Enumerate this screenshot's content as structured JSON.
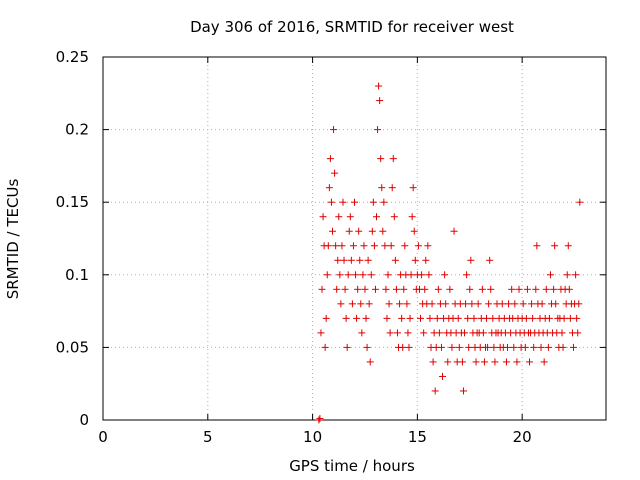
{
  "chart_data": {
    "type": "scatter",
    "title": "Day 306 of 2016, SRMTID for receiver west",
    "xlabel": "GPS time / hours",
    "ylabel": "SRMTID / TECUs",
    "xlim": [
      0,
      24
    ],
    "ylim": [
      0,
      0.25
    ],
    "xticks": [
      0,
      5,
      10,
      15,
      20
    ],
    "xtick_labels": [
      "0",
      "5",
      "10",
      "15",
      "20"
    ],
    "yticks": [
      0,
      0.05,
      0.1,
      0.15,
      0.2,
      0.25
    ],
    "ytick_labels": [
      "0",
      "0.05",
      "0.1",
      "0.15",
      "0.2",
      "0.25"
    ],
    "grid": true,
    "marker": "plus",
    "color": "#e00000",
    "series": [
      {
        "name": "SRMTID",
        "points": [
          [
            10.3,
            0.0
          ],
          [
            10.35,
            0.001
          ],
          [
            10.4,
            0.06
          ],
          [
            10.45,
            0.09
          ],
          [
            10.5,
            0.14
          ],
          [
            10.55,
            0.12
          ],
          [
            10.6,
            0.05
          ],
          [
            10.65,
            0.07
          ],
          [
            10.7,
            0.1
          ],
          [
            10.75,
            0.12
          ],
          [
            10.8,
            0.16
          ],
          [
            10.85,
            0.18
          ],
          [
            10.9,
            0.15
          ],
          [
            10.95,
            0.13
          ],
          [
            11.0,
            0.2
          ],
          [
            11.05,
            0.17
          ],
          [
            11.1,
            0.12
          ],
          [
            11.15,
            0.09
          ],
          [
            11.2,
            0.11
          ],
          [
            11.25,
            0.14
          ],
          [
            11.3,
            0.1
          ],
          [
            11.35,
            0.08
          ],
          [
            11.4,
            0.12
          ],
          [
            11.45,
            0.15
          ],
          [
            11.5,
            0.11
          ],
          [
            11.55,
            0.09
          ],
          [
            11.6,
            0.07
          ],
          [
            11.65,
            0.05
          ],
          [
            11.7,
            0.1
          ],
          [
            11.75,
            0.13
          ],
          [
            11.8,
            0.14
          ],
          [
            11.85,
            0.11
          ],
          [
            11.9,
            0.08
          ],
          [
            11.95,
            0.12
          ],
          [
            12.0,
            0.15
          ],
          [
            12.05,
            0.1
          ],
          [
            12.1,
            0.07
          ],
          [
            12.15,
            0.09
          ],
          [
            12.2,
            0.13
          ],
          [
            12.25,
            0.11
          ],
          [
            12.3,
            0.08
          ],
          [
            12.35,
            0.06
          ],
          [
            12.4,
            0.1
          ],
          [
            12.45,
            0.12
          ],
          [
            12.5,
            0.09
          ],
          [
            12.55,
            0.07
          ],
          [
            12.6,
            0.05
          ],
          [
            12.65,
            0.11
          ],
          [
            12.7,
            0.08
          ],
          [
            12.75,
            0.04
          ],
          [
            12.8,
            0.1
          ],
          [
            12.85,
            0.13
          ],
          [
            12.9,
            0.15
          ],
          [
            12.95,
            0.12
          ],
          [
            13.0,
            0.09
          ],
          [
            13.05,
            0.14
          ],
          [
            13.1,
            0.2
          ],
          [
            13.15,
            0.23
          ],
          [
            13.2,
            0.22
          ],
          [
            13.25,
            0.18
          ],
          [
            13.3,
            0.16
          ],
          [
            13.35,
            0.13
          ],
          [
            13.4,
            0.15
          ],
          [
            13.45,
            0.12
          ],
          [
            13.5,
            0.09
          ],
          [
            13.55,
            0.07
          ],
          [
            13.6,
            0.1
          ],
          [
            13.65,
            0.08
          ],
          [
            13.7,
            0.06
          ],
          [
            13.75,
            0.12
          ],
          [
            13.8,
            0.16
          ],
          [
            13.85,
            0.18
          ],
          [
            13.9,
            0.14
          ],
          [
            13.95,
            0.11
          ],
          [
            14.0,
            0.09
          ],
          [
            14.05,
            0.06
          ],
          [
            14.1,
            0.05
          ],
          [
            14.15,
            0.08
          ],
          [
            14.2,
            0.1
          ],
          [
            14.25,
            0.07
          ],
          [
            14.3,
            0.05
          ],
          [
            14.35,
            0.09
          ],
          [
            14.4,
            0.12
          ],
          [
            14.45,
            0.1
          ],
          [
            14.5,
            0.08
          ],
          [
            14.55,
            0.06
          ],
          [
            14.6,
            0.05
          ],
          [
            14.65,
            0.07
          ],
          [
            14.7,
            0.1
          ],
          [
            14.75,
            0.14
          ],
          [
            14.8,
            0.16
          ],
          [
            14.85,
            0.13
          ],
          [
            14.9,
            0.11
          ],
          [
            14.95,
            0.09
          ],
          [
            15.0,
            0.1
          ],
          [
            15.05,
            0.12
          ],
          [
            15.1,
            0.09
          ],
          [
            15.15,
            0.07
          ],
          [
            15.2,
            0.1
          ],
          [
            15.25,
            0.08
          ],
          [
            15.3,
            0.06
          ],
          [
            15.35,
            0.09
          ],
          [
            15.4,
            0.11
          ],
          [
            15.45,
            0.08
          ],
          [
            15.5,
            0.12
          ],
          [
            15.55,
            0.1
          ],
          [
            15.6,
            0.07
          ],
          [
            15.65,
            0.05
          ],
          [
            15.7,
            0.08
          ],
          [
            15.75,
            0.04
          ],
          [
            15.8,
            0.06
          ],
          [
            15.85,
            0.02
          ],
          [
            15.9,
            0.05
          ],
          [
            15.95,
            0.07
          ],
          [
            16.0,
            0.09
          ],
          [
            16.05,
            0.06
          ],
          [
            16.1,
            0.08
          ],
          [
            16.15,
            0.05
          ],
          [
            16.2,
            0.03
          ],
          [
            16.25,
            0.07
          ],
          [
            16.3,
            0.1
          ],
          [
            16.35,
            0.08
          ],
          [
            16.4,
            0.06
          ],
          [
            16.45,
            0.04
          ],
          [
            16.5,
            0.07
          ],
          [
            16.55,
            0.09
          ],
          [
            16.6,
            0.06
          ],
          [
            16.65,
            0.05
          ],
          [
            16.7,
            0.07
          ],
          [
            16.75,
            0.13
          ],
          [
            16.8,
            0.08
          ],
          [
            16.85,
            0.06
          ],
          [
            16.9,
            0.04
          ],
          [
            16.95,
            0.07
          ],
          [
            17.0,
            0.05
          ],
          [
            17.05,
            0.08
          ],
          [
            17.1,
            0.06
          ],
          [
            17.15,
            0.04
          ],
          [
            17.2,
            0.02
          ],
          [
            17.25,
            0.06
          ],
          [
            17.3,
            0.08
          ],
          [
            17.35,
            0.1
          ],
          [
            17.4,
            0.07
          ],
          [
            17.45,
            0.05
          ],
          [
            17.5,
            0.09
          ],
          [
            17.55,
            0.11
          ],
          [
            17.6,
            0.08
          ],
          [
            17.65,
            0.06
          ],
          [
            17.7,
            0.07
          ],
          [
            17.75,
            0.05
          ],
          [
            17.8,
            0.04
          ],
          [
            17.85,
            0.06
          ],
          [
            17.9,
            0.08
          ],
          [
            17.95,
            0.06
          ],
          [
            18.0,
            0.05
          ],
          [
            18.05,
            0.07
          ],
          [
            18.1,
            0.09
          ],
          [
            18.15,
            0.06
          ],
          [
            18.2,
            0.04
          ],
          [
            18.25,
            0.05
          ],
          [
            18.3,
            0.07
          ],
          [
            18.35,
            0.05
          ],
          [
            18.4,
            0.08
          ],
          [
            18.45,
            0.11
          ],
          [
            18.5,
            0.09
          ],
          [
            18.55,
            0.06
          ],
          [
            18.6,
            0.07
          ],
          [
            18.65,
            0.05
          ],
          [
            18.7,
            0.04
          ],
          [
            18.75,
            0.06
          ],
          [
            18.8,
            0.08
          ],
          [
            18.85,
            0.06
          ],
          [
            18.9,
            0.07
          ],
          [
            18.95,
            0.05
          ],
          [
            19.0,
            0.06
          ],
          [
            19.05,
            0.08
          ],
          [
            19.1,
            0.05
          ],
          [
            19.15,
            0.07
          ],
          [
            19.2,
            0.06
          ],
          [
            19.25,
            0.04
          ],
          [
            19.3,
            0.05
          ],
          [
            19.35,
            0.08
          ],
          [
            19.4,
            0.07
          ],
          [
            19.45,
            0.06
          ],
          [
            19.5,
            0.09
          ],
          [
            19.55,
            0.07
          ],
          [
            19.6,
            0.05
          ],
          [
            19.65,
            0.08
          ],
          [
            19.7,
            0.06
          ],
          [
            19.75,
            0.04
          ],
          [
            19.8,
            0.07
          ],
          [
            19.85,
            0.09
          ],
          [
            19.9,
            0.06
          ],
          [
            19.95,
            0.05
          ],
          [
            20.0,
            0.07
          ],
          [
            20.05,
            0.08
          ],
          [
            20.1,
            0.06
          ],
          [
            20.15,
            0.05
          ],
          [
            20.2,
            0.07
          ],
          [
            20.25,
            0.09
          ],
          [
            20.3,
            0.06
          ],
          [
            20.35,
            0.04
          ],
          [
            20.4,
            0.06
          ],
          [
            20.45,
            0.08
          ],
          [
            20.5,
            0.07
          ],
          [
            20.55,
            0.05
          ],
          [
            20.6,
            0.06
          ],
          [
            20.65,
            0.09
          ],
          [
            20.7,
            0.12
          ],
          [
            20.75,
            0.08
          ],
          [
            20.8,
            0.06
          ],
          [
            20.85,
            0.07
          ],
          [
            20.9,
            0.05
          ],
          [
            20.95,
            0.08
          ],
          [
            21.0,
            0.06
          ],
          [
            21.05,
            0.04
          ],
          [
            21.1,
            0.07
          ],
          [
            21.15,
            0.09
          ],
          [
            21.2,
            0.06
          ],
          [
            21.25,
            0.05
          ],
          [
            21.3,
            0.07
          ],
          [
            21.35,
            0.1
          ],
          [
            21.4,
            0.08
          ],
          [
            21.45,
            0.06
          ],
          [
            21.5,
            0.09
          ],
          [
            21.55,
            0.12
          ],
          [
            21.6,
            0.08
          ],
          [
            21.65,
            0.06
          ],
          [
            21.7,
            0.07
          ],
          [
            21.75,
            0.05
          ],
          [
            21.8,
            0.07
          ],
          [
            21.85,
            0.09
          ],
          [
            21.9,
            0.06
          ],
          [
            21.95,
            0.05
          ],
          [
            22.0,
            0.07
          ],
          [
            22.05,
            0.09
          ],
          [
            22.1,
            0.08
          ],
          [
            22.15,
            0.1
          ],
          [
            22.2,
            0.12
          ],
          [
            22.25,
            0.09
          ],
          [
            22.3,
            0.07
          ],
          [
            22.35,
            0.08
          ],
          [
            22.4,
            0.06
          ],
          [
            22.45,
            0.05
          ],
          [
            22.5,
            0.08
          ],
          [
            22.55,
            0.1
          ],
          [
            22.6,
            0.07
          ],
          [
            22.65,
            0.06
          ],
          [
            22.7,
            0.08
          ],
          [
            22.75,
            0.15
          ]
        ]
      }
    ]
  }
}
